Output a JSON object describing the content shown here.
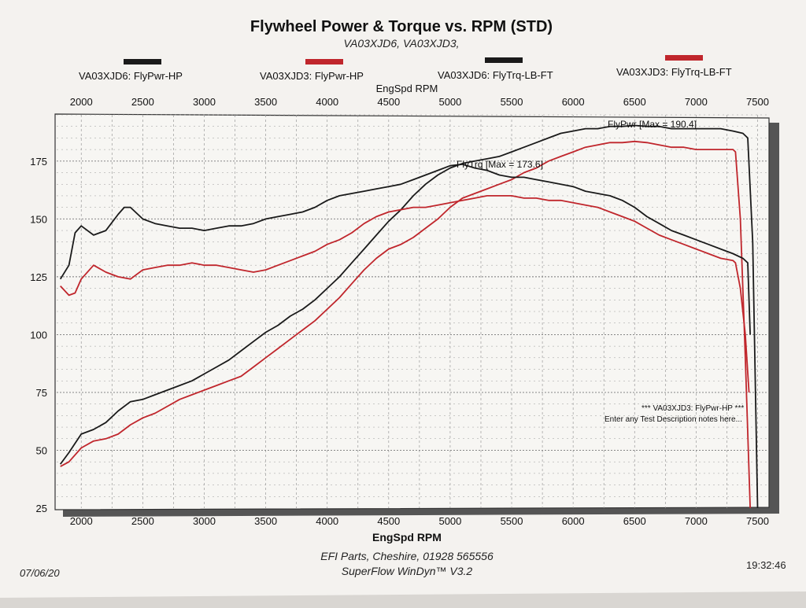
{
  "header": {
    "title": "Flywheel Power & Torque vs. RPM (STD)",
    "subtitle": "VA03XJD6, VA03XJD3,"
  },
  "legend": [
    {
      "label": "VA03XJD6: FlyPwr-HP",
      "color": "#1a1a1a"
    },
    {
      "label": "VA03XJD3: FlyPwr-HP",
      "color": "#c0262c"
    },
    {
      "label": "VA03XJD6: FlyTrq-LB-FT",
      "color": "#1a1a1a"
    },
    {
      "label": "VA03XJD3: FlyTrq-LB-FT",
      "color": "#c0262c"
    }
  ],
  "colors": {
    "black_series": "#1a1a1a",
    "red_series": "#c0262c",
    "grid": "#9a9a9a",
    "paper": "#f4f2ef",
    "plot_bg": "#f7f6f3",
    "shadow": "#555555"
  },
  "annotations": {
    "power_max": "FlyPwr [Max = 190.4]",
    "torque_max": "FlyTrq [Max = 173.6]",
    "notes_line1": "*** VA03XJD3: FlyPwr-HP        ***",
    "notes_line2": "Enter any Test Description notes here..."
  },
  "footer": {
    "company": "EFI Parts, Cheshire, 01928 565556",
    "software": "SuperFlow WinDyn™ V3.2",
    "date": "07/06/20",
    "time": "19:32:46"
  },
  "chart_data": {
    "type": "line",
    "title": "Flywheel Power & Torque vs. RPM (STD)",
    "xlabel": "EngSpd RPM",
    "ylabel": "",
    "xlim": [
      1800,
      7580
    ],
    "ylim": [
      25,
      195
    ],
    "x_ticks": [
      2000,
      2500,
      3000,
      3500,
      4000,
      4500,
      5000,
      5500,
      6000,
      6500,
      7000,
      7500
    ],
    "y_ticks": [
      25,
      50,
      75,
      100,
      125,
      150,
      175
    ],
    "x_tick_labels": [
      "2000",
      "2500",
      "3000",
      "3500",
      "4000",
      "4500",
      "5000",
      "5500",
      "6000",
      "6500",
      "7000",
      "7500"
    ],
    "y_tick_labels": [
      "25",
      "50",
      "75",
      "100",
      "125",
      "150",
      "175"
    ],
    "grid": true,
    "series": [
      {
        "name": "VA03XJD6: FlyPwr-HP",
        "color": "#1a1a1a",
        "x": [
          1830,
          1900,
          2000,
          2100,
          2200,
          2300,
          2400,
          2500,
          2600,
          2700,
          2800,
          2900,
          3000,
          3100,
          3200,
          3300,
          3400,
          3500,
          3600,
          3700,
          3800,
          3900,
          4000,
          4100,
          4200,
          4300,
          4400,
          4500,
          4600,
          4700,
          4800,
          4900,
          5000,
          5100,
          5200,
          5300,
          5400,
          5500,
          5600,
          5700,
          5800,
          5900,
          6000,
          6100,
          6200,
          6300,
          6400,
          6500,
          6600,
          6700,
          6800,
          6900,
          7000,
          7100,
          7200,
          7300,
          7380,
          7420,
          7460,
          7500
        ],
        "values": [
          44,
          49,
          57,
          59,
          62,
          67,
          71,
          72,
          74,
          76,
          78,
          80,
          83,
          86,
          89,
          93,
          97,
          101,
          104,
          108,
          111,
          115,
          120,
          125,
          131,
          137,
          143,
          149,
          154,
          160,
          165,
          169,
          172,
          174,
          175,
          176,
          177,
          179,
          181,
          183,
          185,
          187,
          188,
          189,
          189,
          190,
          190,
          190.4,
          190,
          190,
          189,
          189,
          189,
          189,
          189,
          188,
          187,
          185,
          140,
          25
        ]
      },
      {
        "name": "VA03XJD3: FlyPwr-HP",
        "color": "#c0262c",
        "x": [
          1830,
          1900,
          2000,
          2100,
          2200,
          2300,
          2400,
          2500,
          2600,
          2700,
          2800,
          2900,
          3000,
          3100,
          3200,
          3300,
          3400,
          3500,
          3600,
          3700,
          3800,
          3900,
          4000,
          4100,
          4200,
          4300,
          4400,
          4500,
          4600,
          4700,
          4800,
          4900,
          5000,
          5100,
          5200,
          5300,
          5400,
          5500,
          5600,
          5700,
          5800,
          5900,
          6000,
          6100,
          6200,
          6300,
          6400,
          6500,
          6600,
          6700,
          6800,
          6900,
          7000,
          7100,
          7200,
          7300,
          7320,
          7360,
          7400,
          7440
        ],
        "values": [
          43,
          45,
          51,
          54,
          55,
          57,
          61,
          64,
          66,
          69,
          72,
          74,
          76,
          78,
          80,
          82,
          86,
          90,
          94,
          98,
          102,
          106,
          111,
          116,
          122,
          128,
          133,
          137,
          139,
          142,
          146,
          150,
          155,
          159,
          161,
          163,
          165,
          167,
          170,
          172,
          175,
          177,
          179,
          181,
          182,
          183,
          183,
          183.5,
          183,
          182,
          181,
          181,
          180,
          180,
          180,
          180,
          179,
          150,
          90,
          25
        ]
      },
      {
        "name": "VA03XJD6: FlyTrq-LB-FT",
        "color": "#1a1a1a",
        "x": [
          1830,
          1900,
          1950,
          2000,
          2100,
          2200,
          2300,
          2350,
          2400,
          2500,
          2600,
          2700,
          2800,
          2900,
          3000,
          3100,
          3200,
          3300,
          3400,
          3500,
          3600,
          3700,
          3800,
          3900,
          4000,
          4100,
          4200,
          4300,
          4400,
          4500,
          4600,
          4700,
          4800,
          4900,
          5000,
          5100,
          5200,
          5300,
          5400,
          5500,
          5600,
          5700,
          5800,
          5900,
          6000,
          6100,
          6200,
          6300,
          6400,
          6500,
          6600,
          6700,
          6800,
          6900,
          7000,
          7100,
          7200,
          7300,
          7380,
          7420,
          7440
        ],
        "values": [
          124,
          130,
          144,
          147,
          143,
          145,
          152,
          155,
          155,
          150,
          148,
          147,
          146,
          146,
          145,
          146,
          147,
          147,
          148,
          150,
          151,
          152,
          153,
          155,
          158,
          160,
          161,
          162,
          163,
          164,
          165,
          167,
          169,
          171,
          173,
          173.6,
          172,
          171,
          169,
          168,
          168,
          167,
          166,
          165,
          164,
          162,
          161,
          160,
          158,
          155,
          151,
          148,
          145,
          143,
          141,
          139,
          137,
          135,
          133,
          131,
          100
        ]
      },
      {
        "name": "VA03XJD3: FlyTrq-LB-FT",
        "color": "#c0262c",
        "x": [
          1830,
          1900,
          1950,
          2000,
          2100,
          2200,
          2300,
          2400,
          2500,
          2600,
          2700,
          2800,
          2900,
          3000,
          3100,
          3200,
          3300,
          3400,
          3500,
          3600,
          3700,
          3800,
          3900,
          4000,
          4100,
          4200,
          4300,
          4400,
          4500,
          4600,
          4700,
          4800,
          4900,
          5000,
          5100,
          5200,
          5300,
          5400,
          5500,
          5600,
          5700,
          5800,
          5900,
          6000,
          6100,
          6200,
          6300,
          6400,
          6500,
          6600,
          6700,
          6800,
          6900,
          7000,
          7100,
          7200,
          7300,
          7320,
          7360,
          7400,
          7430
        ],
        "values": [
          121,
          117,
          118,
          124,
          130,
          127,
          125,
          124,
          128,
          129,
          130,
          130,
          131,
          130,
          130,
          129,
          128,
          127,
          128,
          130,
          132,
          134,
          136,
          139,
          141,
          144,
          148,
          151,
          153,
          154,
          155,
          155,
          156,
          157,
          158,
          159,
          160,
          160,
          160,
          159,
          159,
          158,
          158,
          157,
          156,
          155,
          153,
          151,
          149,
          146,
          143,
          141,
          139,
          137,
          135,
          133,
          132,
          131,
          120,
          100,
          75
        ]
      }
    ]
  }
}
